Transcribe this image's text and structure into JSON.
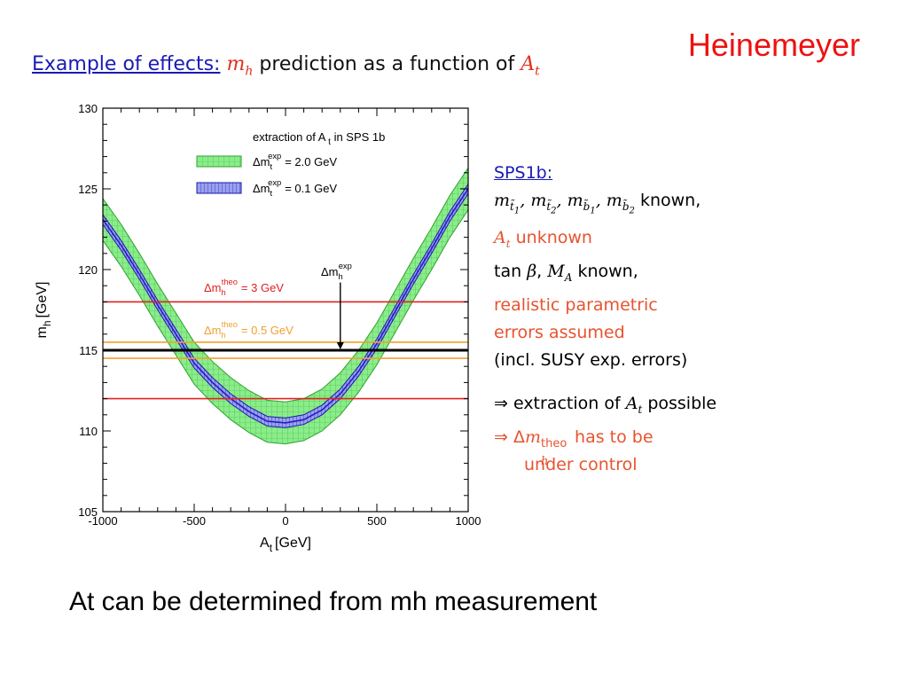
{
  "author": "Heinemeyer",
  "heading": {
    "lead": "Example of effects:",
    "var1": "m",
    "var1_sub": "h",
    "middle": "prediction as a function of",
    "var2": "A",
    "var2_sub": "t"
  },
  "chart_data": {
    "type": "line",
    "xlabel": "A",
    "xlabel_sub": "t",
    "xlabel_unit": "[GeV]",
    "ylabel": "m",
    "ylabel_sub": "h",
    "ylabel_unit": "[GeV]",
    "xlim": [
      -1000,
      1000
    ],
    "ylim": [
      105,
      130
    ],
    "x_ticks": [
      -1000,
      -500,
      0,
      500,
      1000
    ],
    "y_ticks": [
      105,
      110,
      115,
      120,
      125,
      130
    ],
    "x_tick_labels": [
      "-1000",
      "-500",
      "0",
      "500",
      "1000"
    ],
    "y_tick_labels": [
      "105",
      "110",
      "115",
      "120",
      "125",
      "130"
    ],
    "curve_x": [
      -1000,
      -900,
      -800,
      -700,
      -600,
      -500,
      -400,
      -300,
      -200,
      -100,
      0,
      100,
      200,
      300,
      400,
      500,
      600,
      700,
      800,
      900,
      1000
    ],
    "curve_y": [
      123.1,
      121.5,
      119.7,
      117.8,
      116.0,
      114.2,
      113.0,
      112.0,
      111.2,
      110.6,
      110.5,
      110.7,
      111.3,
      112.3,
      113.7,
      115.4,
      117.4,
      119.4,
      121.3,
      123.3,
      125.0
    ],
    "band_wide_halfwidth": 1.3,
    "band_narrow_halfwidth": 0.3,
    "legend": {
      "title": "extraction of A",
      "title_sub": "t",
      "title_rest": "in SPS 1b",
      "items": [
        {
          "prefix": "Δm",
          "sub": "t",
          "sup": "exp",
          "rest": "= 2.0 GeV",
          "color": "#7de37d"
        },
        {
          "prefix": "Δm",
          "sub": "t",
          "sup": "exp",
          "rest": "= 0.1 GeV",
          "color": "#3c3ccc"
        }
      ]
    },
    "hlines": [
      {
        "y": 118.0,
        "color": "#e02020"
      },
      {
        "y": 112.0,
        "color": "#e02020"
      },
      {
        "y": 115.5,
        "color": "#f0a030"
      },
      {
        "y": 114.5,
        "color": "#f0a030"
      },
      {
        "y": 115.0,
        "color": "#000000"
      }
    ],
    "annotations": [
      {
        "prefix": "Δm",
        "sub": "h",
        "sup": "theo",
        "rest": "= 3 GeV",
        "color": "#e02020"
      },
      {
        "prefix": "Δm",
        "sub": "h",
        "sup": "theo",
        "rest": "= 0.5 GeV",
        "color": "#f0a030"
      },
      {
        "prefix": "Δm",
        "sub": "h",
        "sup": "exp",
        "rest": "",
        "color": "#000000"
      }
    ],
    "arrow": {
      "x": 300,
      "from_y": 119.2,
      "to_y": 115.0
    }
  },
  "panel": {
    "title": "SPS1b:",
    "masses_known": "known,",
    "at_unknown": "unknown",
    "tan_known": "known,",
    "realistic1": "realistic parametric",
    "realistic2": "errors assumed",
    "incl": "(incl. SUSY exp. errors)",
    "extraction_pre": "⇒ extraction of",
    "extraction_post": "possible",
    "delta_pre": "⇒ Δ",
    "delta_post": "has to be",
    "under": "under control"
  },
  "caption": "At can be determined from mh measurement"
}
